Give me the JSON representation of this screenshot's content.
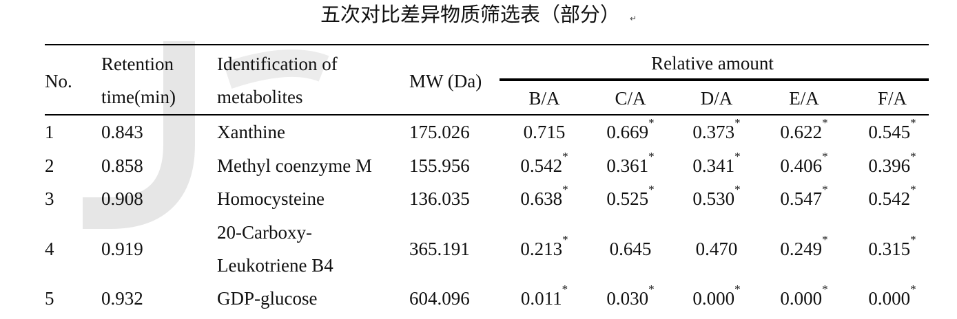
{
  "title": "五次对比差异物质筛选表（部分）",
  "paragraph_mark": "↵",
  "table": {
    "headers": {
      "no": "No.",
      "retention": [
        "Retention",
        "time(min)"
      ],
      "identification": [
        "Identification of",
        "metabolites"
      ],
      "mw": "MW (Da)",
      "relative": "Relative amount",
      "ratios": [
        "B/A",
        "C/A",
        "D/A",
        "E/A",
        "F/A"
      ]
    },
    "rows": [
      {
        "no": "1",
        "retention": "0.843",
        "name": [
          "Xanthine"
        ],
        "mw": "175.026",
        "ratios": [
          {
            "value": "0.715",
            "mark": null
          },
          {
            "value": "0.669",
            "mark": "*"
          },
          {
            "value": "0.373",
            "mark": "*"
          },
          {
            "value": "0.622",
            "mark": "*"
          },
          {
            "value": "0.545",
            "mark": "*"
          }
        ]
      },
      {
        "no": "2",
        "retention": "0.858",
        "name": [
          "Methyl coenzyme M"
        ],
        "mw": "155.956",
        "ratios": [
          {
            "value": "0.542",
            "mark": "*"
          },
          {
            "value": "0.361",
            "mark": "*"
          },
          {
            "value": "0.341",
            "mark": "*"
          },
          {
            "value": "0.406",
            "mark": "*"
          },
          {
            "value": "0.396",
            "mark": "*"
          }
        ]
      },
      {
        "no": "3",
        "retention": "0.908",
        "name": [
          "Homocysteine"
        ],
        "mw": "136.035",
        "ratios": [
          {
            "value": "0.638",
            "mark": "*"
          },
          {
            "value": "0.525",
            "mark": "*"
          },
          {
            "value": "0.530",
            "mark": "*"
          },
          {
            "value": "0.547",
            "mark": "*"
          },
          {
            "value": "0.542",
            "mark": "*"
          }
        ]
      },
      {
        "no": "4",
        "retention": "0.919",
        "name": [
          "20-Carboxy-",
          "Leukotriene B4"
        ],
        "mw": "365.191",
        "ratios": [
          {
            "value": "0.213",
            "mark": "*"
          },
          {
            "value": "0.645",
            "mark": null
          },
          {
            "value": "0.470",
            "mark": null
          },
          {
            "value": "0.249",
            "mark": "*"
          },
          {
            "value": "0.315",
            "mark": "*"
          }
        ]
      },
      {
        "no": "5",
        "retention": "0.932",
        "name": [
          "GDP-glucose"
        ],
        "mw": "604.096",
        "ratios": [
          {
            "value": "0.011",
            "mark": "*"
          },
          {
            "value": "0.030",
            "mark": "*"
          },
          {
            "value": "0.000",
            "mark": "*"
          },
          {
            "value": "0.000",
            "mark": "*"
          },
          {
            "value": "0.000",
            "mark": "*"
          }
        ]
      }
    ]
  }
}
